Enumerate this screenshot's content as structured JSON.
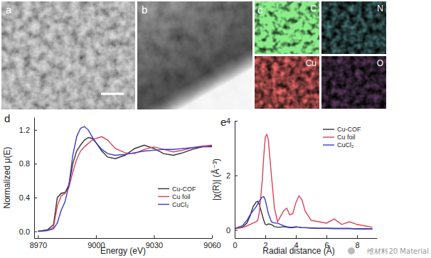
{
  "images": [
    {
      "label": "a"
    },
    {
      "label": "b"
    }
  ],
  "element_maps": {
    "label": "c",
    "elements": [
      "C",
      "N",
      "Cu",
      "O"
    ]
  },
  "watermark": "维材料20 Material",
  "chart_data": [
    {
      "type": "line",
      "title": "d",
      "xlabel": "Energy (eV)",
      "ylabel": "Normalized μ(E)",
      "x": [
        8970,
        8975,
        8978,
        8980,
        8982,
        8984,
        8986,
        8988,
        8990,
        8992,
        8994,
        8996,
        8998,
        9000,
        9003,
        9006,
        9010,
        9015,
        9020,
        9025,
        9030,
        9035,
        9040,
        9045,
        9050,
        9055,
        9060
      ],
      "series": [
        {
          "name": "Cu-COF",
          "color": "#333333",
          "values": [
            0.0,
            0.02,
            0.08,
            0.4,
            0.45,
            0.46,
            0.55,
            0.8,
            0.95,
            1.02,
            1.08,
            1.11,
            1.1,
            1.05,
            0.95,
            0.88,
            0.86,
            0.9,
            0.98,
            1.02,
            0.98,
            0.92,
            0.9,
            0.93,
            0.97,
            1.0,
            1.01
          ]
        },
        {
          "name": "Cu foil",
          "color": "#d9435a",
          "values": [
            0.0,
            0.01,
            0.05,
            0.3,
            0.42,
            0.45,
            0.52,
            0.7,
            0.85,
            0.95,
            1.0,
            1.04,
            1.08,
            1.1,
            1.12,
            1.08,
            0.98,
            0.93,
            0.92,
            0.97,
            1.0,
            0.97,
            0.94,
            0.96,
            0.99,
            1.01,
            1.02
          ]
        },
        {
          "name": "CuCl₂",
          "color": "#3a3acc",
          "values": [
            0.0,
            0.01,
            0.03,
            0.1,
            0.25,
            0.35,
            0.55,
            0.9,
            1.12,
            1.22,
            1.24,
            1.2,
            1.12,
            1.05,
            0.97,
            0.92,
            0.9,
            0.91,
            0.93,
            0.95,
            0.96,
            0.97,
            0.97,
            0.98,
            0.99,
            1.0,
            1.0
          ]
        }
      ],
      "xlim": [
        8968,
        9060
      ],
      "xticks": [
        8970,
        9000,
        9030,
        9060
      ],
      "ylim": [
        -0.08,
        1.35
      ],
      "yticks": [
        {
          "value": 0,
          "label": "0.0"
        },
        0.4,
        0.8,
        1.2
      ],
      "grid": false,
      "legend": "lower right"
    },
    {
      "type": "line",
      "title": "e",
      "xlabel": "Radial distance (Å)",
      "ylabel": "|χ(R)| (Å⁻³)",
      "x": [
        0,
        0.5,
        0.8,
        1.0,
        1.2,
        1.4,
        1.5,
        1.6,
        1.8,
        1.9,
        2.0,
        2.1,
        2.2,
        2.4,
        2.6,
        2.8,
        3.0,
        3.2,
        3.4,
        3.6,
        3.8,
        4.0,
        4.2,
        4.4,
        4.6,
        5.0,
        5.5,
        6.0,
        6.5,
        7.0,
        7.5,
        8.0,
        8.5,
        9.0
      ],
      "series": [
        {
          "name": "Cu-COF",
          "color": "#333333",
          "values": [
            0.05,
            0.1,
            0.25,
            0.5,
            0.85,
            1.02,
            1.05,
            0.95,
            0.55,
            0.35,
            0.2,
            0.18,
            0.22,
            0.2,
            0.12,
            0.1,
            0.1,
            0.12,
            0.1,
            0.08,
            0.08,
            0.1,
            0.1,
            0.08,
            0.08,
            0.07,
            0.06,
            0.06,
            0.05,
            0.05,
            0.05,
            0.04,
            0.04,
            0.04
          ]
        },
        {
          "name": "Cu foil",
          "color": "#d9435a",
          "values": [
            0.05,
            0.08,
            0.15,
            0.2,
            0.25,
            0.3,
            0.35,
            0.6,
            1.8,
            2.7,
            3.4,
            3.5,
            3.3,
            2.0,
            0.8,
            0.3,
            0.5,
            0.7,
            0.8,
            0.55,
            0.6,
            1.0,
            1.25,
            1.1,
            0.7,
            0.35,
            0.3,
            0.25,
            0.4,
            0.2,
            0.3,
            0.2,
            0.15,
            0.1
          ]
        },
        {
          "name": "CuCl₂",
          "color": "#3a3acc",
          "values": [
            0.05,
            0.15,
            0.35,
            0.55,
            0.7,
            0.85,
            0.95,
            1.05,
            1.2,
            1.22,
            1.1,
            0.85,
            0.6,
            0.3,
            0.25,
            0.25,
            0.2,
            0.15,
            0.12,
            0.1,
            0.1,
            0.12,
            0.1,
            0.08,
            0.08,
            0.07,
            0.06,
            0.06,
            0.05,
            0.05,
            0.05,
            0.04,
            0.04,
            0.04
          ]
        }
      ],
      "xlim": [
        0,
        9.3
      ],
      "xticks": [
        0,
        2,
        4,
        6,
        8
      ],
      "ylim": [
        -0.3,
        4
      ],
      "yticks": [
        0,
        2,
        4
      ],
      "grid": false,
      "legend": "upper right"
    }
  ]
}
